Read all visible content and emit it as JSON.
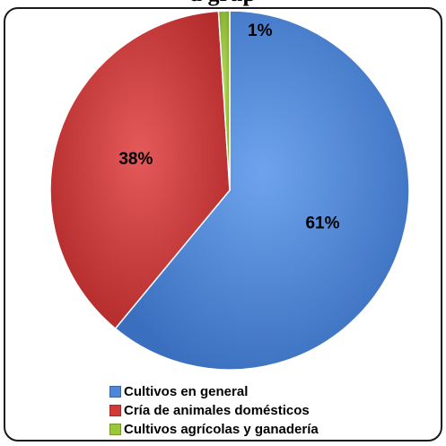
{
  "chart_data": {
    "type": "pie",
    "title": "",
    "title_visible_fragment": "a grup",
    "categories": [
      "Cultivos en general",
      "Cría de animales domésticos",
      "Cultivos agrícolas y ganadería"
    ],
    "values": [
      61,
      38,
      1
    ],
    "labels": [
      "61%",
      "38%",
      "1%"
    ],
    "colors": [
      "#4f86d6",
      "#d23a3a",
      "#9bc63b"
    ],
    "start_angle_deg": 0,
    "direction": "clockwise",
    "legend_position": "bottom"
  }
}
